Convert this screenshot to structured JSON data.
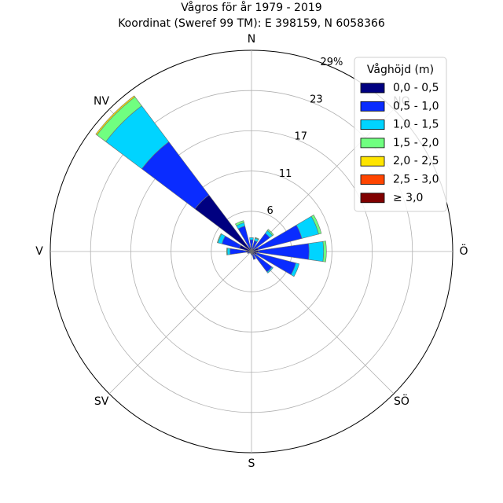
{
  "chart_data": {
    "type": "windrose",
    "title": "Vågros för år 1979 - 2019",
    "subtitle": "Koordinat (Sweref 99 TM): E 398159, N 6058366",
    "directions": [
      "N",
      "NO",
      "Ö",
      "SÖ",
      "S",
      "SV",
      "V",
      "NV"
    ],
    "radial_ticks": [
      "6",
      "11",
      "17",
      "23",
      "29%"
    ],
    "radial_tick_values": [
      5.8,
      11.6,
      17.4,
      23.2,
      29
    ],
    "rmax": 29,
    "legend": {
      "title": "Våghöjd (m)",
      "placement": "upper-right",
      "bins": [
        "0,0 - 0,5",
        "0,5 - 1,0",
        "1,0 - 1,5",
        "1,5 - 2,0",
        "2,0 - 2,5",
        "2,5 - 3,0",
        "≥ 3,0"
      ],
      "colors": [
        "#000080",
        "#0a2cff",
        "#00d4ff",
        "#70ff80",
        "#ffe500",
        "#ff4500",
        "#800000"
      ]
    },
    "sector_width_deg": 16,
    "sectors": [
      {
        "angle": 0,
        "values": [
          0.4,
          1.3,
          0.3,
          0.0,
          0,
          0,
          0
        ]
      },
      {
        "angle": 22.5,
        "values": [
          0.4,
          1.2,
          0.4,
          0.1,
          0,
          0,
          0
        ]
      },
      {
        "angle": 45,
        "values": [
          0.5,
          2.8,
          0.5,
          0.2,
          0,
          0,
          0
        ]
      },
      {
        "angle": 67.5,
        "values": [
          1.0,
          6.5,
          2.5,
          0.4,
          0,
          0,
          0
        ]
      },
      {
        "angle": 90,
        "values": [
          1.0,
          7.3,
          2.1,
          0.4,
          0,
          0,
          0
        ]
      },
      {
        "angle": 112.5,
        "values": [
          0.8,
          5.8,
          0.5,
          0.0,
          0,
          0,
          0
        ]
      },
      {
        "angle": 135,
        "values": [
          0.5,
          3.2,
          0.2,
          0.0,
          0,
          0,
          0
        ]
      },
      {
        "angle": 157.5,
        "values": [
          0.4,
          0.8,
          0.0,
          0.0,
          0,
          0,
          0
        ]
      },
      {
        "angle": 180,
        "values": [
          0.3,
          0.2,
          0.0,
          0.0,
          0,
          0,
          0
        ]
      },
      {
        "angle": 202.5,
        "values": [
          0.2,
          0.1,
          0.0,
          0.0,
          0,
          0,
          0
        ]
      },
      {
        "angle": 225,
        "values": [
          0.2,
          0.1,
          0.0,
          0.0,
          0,
          0,
          0
        ]
      },
      {
        "angle": 247.5,
        "values": [
          0.3,
          0.3,
          0.0,
          0.0,
          0,
          0,
          0
        ]
      },
      {
        "angle": 270,
        "values": [
          0.8,
          2.3,
          0.4,
          0.1,
          0,
          0,
          0
        ]
      },
      {
        "angle": 292.5,
        "values": [
          1.8,
          2.6,
          0.6,
          0.1,
          0,
          0,
          0
        ]
      },
      {
        "angle": 315,
        "values": [
          10.2,
          9.6,
          6.5,
          1.6,
          0.2,
          0,
          0
        ]
      },
      {
        "angle": 337.5,
        "values": [
          0.6,
          3.2,
          0.5,
          0.3,
          0,
          0,
          0
        ]
      }
    ]
  }
}
